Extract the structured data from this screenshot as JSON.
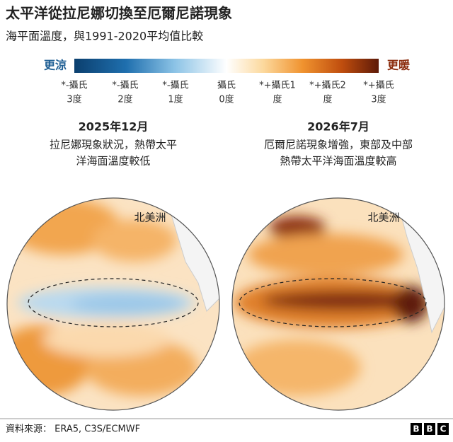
{
  "header": {
    "title": "太平洋從拉尼娜切換至厄爾尼諾現象",
    "subtitle": "海平面溫度，與1991-2020平均值比較"
  },
  "legend": {
    "cool_label": "更涼",
    "warm_label": "更暖",
    "ticks": [
      [
        "*-攝氏",
        "3度"
      ],
      [
        "*-攝氏",
        "2度"
      ],
      [
        "*-攝氏",
        "1度"
      ],
      [
        "攝氏",
        "0度"
      ],
      [
        "*+攝氏1",
        "度"
      ],
      [
        "*+攝氏2",
        "度"
      ],
      [
        "*+攝氏",
        "3度"
      ]
    ]
  },
  "panels": [
    {
      "date": "2025年12月",
      "description": [
        "拉尼娜現象狀況，熱帶太平",
        "洋海面溫度較低"
      ],
      "map_label": "北美洲"
    },
    {
      "date": "2026年7月",
      "description": [
        "厄爾尼諾現象增強，東部及中部",
        "熱帶太平洋海面溫度較高"
      ],
      "map_label": "北美洲"
    }
  ],
  "footer": {
    "source": "資料來源： ERA5, C3S/ECMWF",
    "logo": [
      "B",
      "B",
      "C"
    ]
  }
}
